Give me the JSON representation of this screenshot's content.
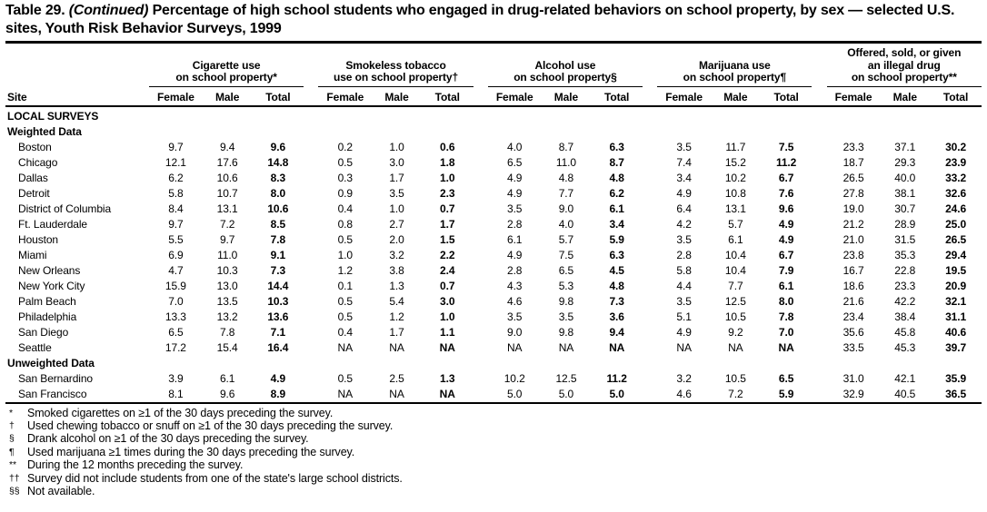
{
  "title": {
    "prefix": "Table 29.",
    "continued": "(Continued)",
    "rest": "Percentage of high school students who engaged in drug-related behaviors on school property, by sex — selected U.S. sites, Youth Risk Behavior Surveys, 1999"
  },
  "table": {
    "site_header": "Site",
    "sub_headers": [
      "Female",
      "Male",
      "Total"
    ],
    "groups": [
      {
        "label": "Cigarette use on school property*",
        "lines": [
          "Cigarette use",
          "on school property*"
        ]
      },
      {
        "label": "Smokeless tobacco use on school property†",
        "lines": [
          "Smokeless tobacco",
          "use on school property†"
        ]
      },
      {
        "label": "Alcohol use on school property§",
        "lines": [
          "Alcohol use",
          "on school property§"
        ]
      },
      {
        "label": "Marijuana use on school property¶",
        "lines": [
          "Marijuana use",
          "on school property¶"
        ]
      },
      {
        "label": "Offered, sold, or given an illegal drug on school property**",
        "lines": [
          "Offered, sold, or given",
          "an illegal drug",
          "on school property**"
        ]
      }
    ],
    "sections": [
      {
        "header": "LOCAL SURVEYS",
        "rows": []
      },
      {
        "header": "Weighted Data",
        "rows": [
          {
            "site": "Boston",
            "values": [
              "9.7",
              "9.4",
              "9.6",
              "0.2",
              "1.0",
              "0.6",
              "4.0",
              "8.7",
              "6.3",
              "3.5",
              "11.7",
              "7.5",
              "23.3",
              "37.1",
              "30.2"
            ]
          },
          {
            "site": "Chicago",
            "values": [
              "12.1",
              "17.6",
              "14.8",
              "0.5",
              "3.0",
              "1.8",
              "6.5",
              "11.0",
              "8.7",
              "7.4",
              "15.2",
              "11.2",
              "18.7",
              "29.3",
              "23.9"
            ]
          },
          {
            "site": "Dallas",
            "values": [
              "6.2",
              "10.6",
              "8.3",
              "0.3",
              "1.7",
              "1.0",
              "4.9",
              "4.8",
              "4.8",
              "3.4",
              "10.2",
              "6.7",
              "26.5",
              "40.0",
              "33.2"
            ]
          },
          {
            "site": "Detroit",
            "values": [
              "5.8",
              "10.7",
              "8.0",
              "0.9",
              "3.5",
              "2.3",
              "4.9",
              "7.7",
              "6.2",
              "4.9",
              "10.8",
              "7.6",
              "27.8",
              "38.1",
              "32.6"
            ]
          },
          {
            "site": "District of Columbia",
            "values": [
              "8.4",
              "13.1",
              "10.6",
              "0.4",
              "1.0",
              "0.7",
              "3.5",
              "9.0",
              "6.1",
              "6.4",
              "13.1",
              "9.6",
              "19.0",
              "30.7",
              "24.6"
            ]
          },
          {
            "site": "Ft. Lauderdale",
            "values": [
              "9.7",
              "7.2",
              "8.5",
              "0.8",
              "2.7",
              "1.7",
              "2.8",
              "4.0",
              "3.4",
              "4.2",
              "5.7",
              "4.9",
              "21.2",
              "28.9",
              "25.0"
            ]
          },
          {
            "site": "Houston",
            "values": [
              "5.5",
              "9.7",
              "7.8",
              "0.5",
              "2.0",
              "1.5",
              "6.1",
              "5.7",
              "5.9",
              "3.5",
              "6.1",
              "4.9",
              "21.0",
              "31.5",
              "26.5"
            ]
          },
          {
            "site": "Miami",
            "values": [
              "6.9",
              "11.0",
              "9.1",
              "1.0",
              "3.2",
              "2.2",
              "4.9",
              "7.5",
              "6.3",
              "2.8",
              "10.4",
              "6.7",
              "23.8",
              "35.3",
              "29.4"
            ]
          },
          {
            "site": "New Orleans",
            "values": [
              "4.7",
              "10.3",
              "7.3",
              "1.2",
              "3.8",
              "2.4",
              "2.8",
              "6.5",
              "4.5",
              "5.8",
              "10.4",
              "7.9",
              "16.7",
              "22.8",
              "19.5"
            ]
          },
          {
            "site": "New York City",
            "values": [
              "15.9",
              "13.0",
              "14.4",
              "0.1",
              "1.3",
              "0.7",
              "4.3",
              "5.3",
              "4.8",
              "4.4",
              "7.7",
              "6.1",
              "18.6",
              "23.3",
              "20.9"
            ]
          },
          {
            "site": "Palm Beach",
            "values": [
              "7.0",
              "13.5",
              "10.3",
              "0.5",
              "5.4",
              "3.0",
              "4.6",
              "9.8",
              "7.3",
              "3.5",
              "12.5",
              "8.0",
              "21.6",
              "42.2",
              "32.1"
            ]
          },
          {
            "site": "Philadelphia",
            "values": [
              "13.3",
              "13.2",
              "13.6",
              "0.5",
              "1.2",
              "1.0",
              "3.5",
              "3.5",
              "3.6",
              "5.1",
              "10.5",
              "7.8",
              "23.4",
              "38.4",
              "31.1"
            ]
          },
          {
            "site": "San Diego",
            "values": [
              "6.5",
              "7.8",
              "7.1",
              "0.4",
              "1.7",
              "1.1",
              "9.0",
              "9.8",
              "9.4",
              "4.9",
              "9.2",
              "7.0",
              "35.6",
              "45.8",
              "40.6"
            ]
          },
          {
            "site": "Seattle",
            "values": [
              "17.2",
              "15.4",
              "16.4",
              "NA",
              "NA",
              "NA",
              "NA",
              "NA",
              "NA",
              "NA",
              "NA",
              "NA",
              "33.5",
              "45.3",
              "39.7"
            ]
          }
        ]
      },
      {
        "header": "Unweighted Data",
        "rows": [
          {
            "site": "San Bernardino",
            "values": [
              "3.9",
              "6.1",
              "4.9",
              "0.5",
              "2.5",
              "1.3",
              "10.2",
              "12.5",
              "11.2",
              "3.2",
              "10.5",
              "6.5",
              "31.0",
              "42.1",
              "35.9"
            ]
          },
          {
            "site": "San Francisco",
            "values": [
              "8.1",
              "9.6",
              "8.9",
              "NA",
              "NA",
              "NA",
              "5.0",
              "5.0",
              "5.0",
              "4.6",
              "7.2",
              "5.9",
              "32.9",
              "40.5",
              "36.5"
            ]
          }
        ]
      }
    ]
  },
  "footnotes": [
    {
      "marker": "*",
      "text": "Smoked cigarettes on ≥1 of the 30 days preceding the survey."
    },
    {
      "marker": "†",
      "text": "Used chewing tobacco or snuff on ≥1 of the 30 days preceding the survey."
    },
    {
      "marker": "§",
      "text": "Drank alcohol on ≥1 of the 30 days preceding the survey."
    },
    {
      "marker": "¶",
      "text": "Used marijuana ≥1 times during the 30 days preceding the survey."
    },
    {
      "marker": "**",
      "text": "During the 12 months preceding the survey."
    },
    {
      "marker": "††",
      "text": "Survey did not include students from one of the state's large school districts."
    },
    {
      "marker": "§§",
      "text": "Not available."
    }
  ]
}
